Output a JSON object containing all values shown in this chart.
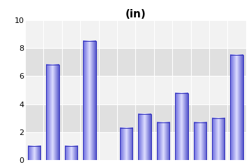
{
  "title": "(in)",
  "values": [
    1.0,
    6.8,
    1.0,
    8.5,
    0,
    2.3,
    3.3,
    2.7,
    4.8,
    2.7,
    3.0,
    7.5
  ],
  "ylim": [
    0,
    10
  ],
  "yticks": [
    0,
    2,
    4,
    6,
    8,
    10
  ],
  "bar_width": 0.7,
  "background_color": "#ffffff",
  "plot_bg_color": "#e8e8e8",
  "band_color_light": "#f2f2f2",
  "band_color_dark": "#e0e0e0",
  "grid_color": "#ffffff",
  "title_fontsize": 11,
  "bar_edge_color": "#3333bb",
  "bar_left_color": "#6666dd",
  "bar_center_color": "#ddddff",
  "bar_right_color": "#5555cc"
}
